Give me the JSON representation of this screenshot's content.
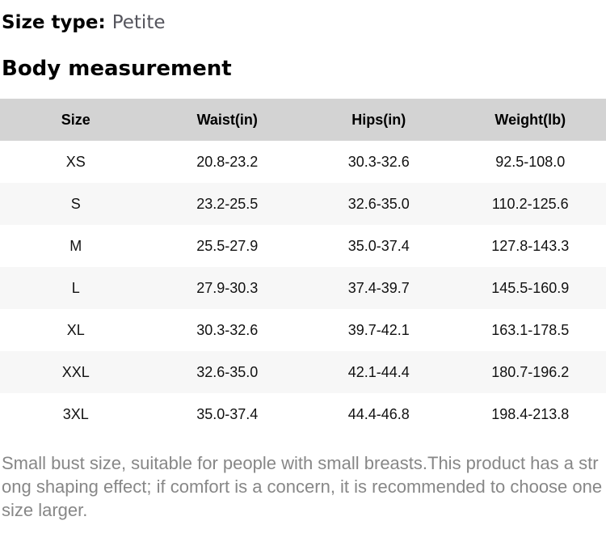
{
  "size_type": {
    "label": "Size type:",
    "value": "Petite"
  },
  "section_title": "Body measurement",
  "table": {
    "headers": [
      "Size",
      "Waist(in)",
      "Hips(in)",
      "Weight(lb)"
    ],
    "rows": [
      [
        "XS",
        "20.8-23.2",
        "30.3-32.6",
        "92.5-108.0"
      ],
      [
        "S",
        "23.2-25.5",
        "32.6-35.0",
        "110.2-125.6"
      ],
      [
        "M",
        "25.5-27.9",
        "35.0-37.4",
        "127.8-143.3"
      ],
      [
        "L",
        "27.9-30.3",
        "37.4-39.7",
        "145.5-160.9"
      ],
      [
        "XL",
        "30.3-32.6",
        "39.7-42.1",
        "163.1-178.5"
      ],
      [
        "XXL",
        "32.6-35.0",
        "42.1-44.4",
        "180.7-196.2"
      ],
      [
        "3XL",
        "35.0-37.4",
        "44.4-46.8",
        "198.4-213.8"
      ]
    ]
  },
  "note": "Small bust size, suitable for people with small breasts.This product has a strong shaping effect; if comfort is a concern, it is recommended to choose one size larger.",
  "colors": {
    "header_row_bg": "#d3d3d3",
    "stripe_row_bg": "#f7f7f7",
    "heading_text": "#000000",
    "size_type_value_text": "#55555d",
    "note_text": "#878787"
  }
}
